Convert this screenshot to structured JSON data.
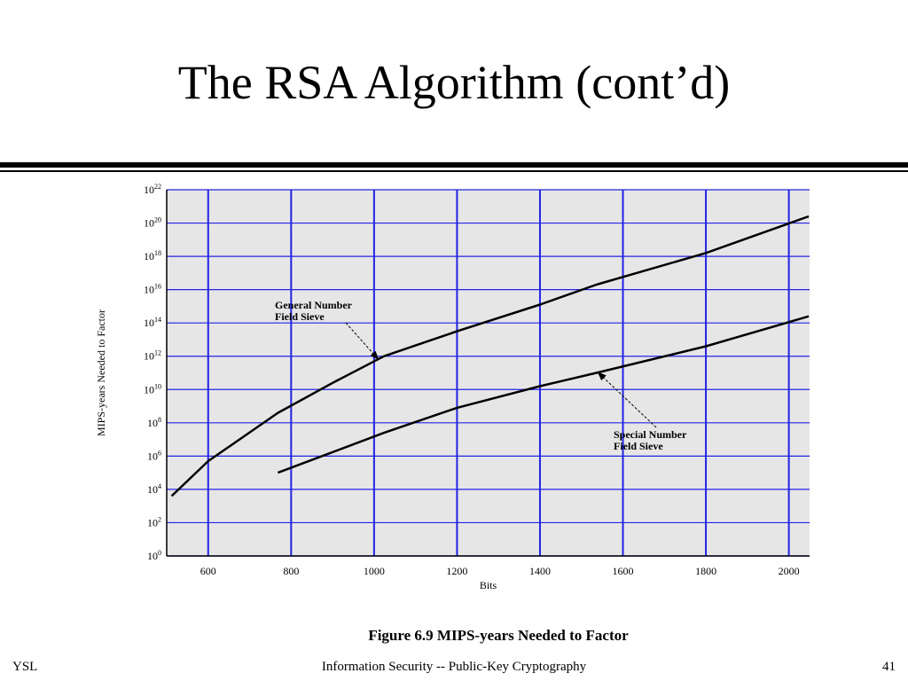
{
  "slide": {
    "title": "The RSA Algorithm (cont’d)",
    "footer_left": "YSL",
    "footer_center": "Information Security -- Public-Key Cryptography",
    "footer_right": "41"
  },
  "chart_data": {
    "type": "line",
    "title": "",
    "caption": "Figure 6.9  MIPS-years Needed to Factor",
    "xlabel": "Bits",
    "ylabel": "MIPS-years Needed to Factor",
    "xlim": [
      500,
      2050
    ],
    "ylim_exponent": [
      0,
      22
    ],
    "yscale": "log",
    "grid": true,
    "plot_background": "#e6e6e6",
    "grid_color": "#2323e6",
    "x_ticks": [
      600,
      800,
      1000,
      1200,
      1400,
      1600,
      1800,
      2000
    ],
    "y_tick_base": "10",
    "y_tick_exponents": [
      "0",
      "2",
      "4",
      "6",
      "8",
      "10",
      "12",
      "14",
      "16",
      "18",
      "20",
      "22"
    ],
    "series": [
      {
        "annotation": "General Number Field Sieve",
        "annotation_lines": [
          "General Number",
          "Field Sieve"
        ],
        "points": [
          {
            "x": 512,
            "y_exp": 3.6
          },
          {
            "x": 600,
            "y_exp": 5.7
          },
          {
            "x": 768,
            "y_exp": 8.6
          },
          {
            "x": 900,
            "y_exp": 10.4
          },
          {
            "x": 1024,
            "y_exp": 12.0
          },
          {
            "x": 1200,
            "y_exp": 13.5
          },
          {
            "x": 1400,
            "y_exp": 15.1
          },
          {
            "x": 1536,
            "y_exp": 16.3
          },
          {
            "x": 1800,
            "y_exp": 18.2
          },
          {
            "x": 2048,
            "y_exp": 20.4
          }
        ]
      },
      {
        "annotation": "Special Number Field Sieve",
        "annotation_lines": [
          "Special Number",
          "Field Sieve"
        ],
        "points": [
          {
            "x": 768,
            "y_exp": 5.0
          },
          {
            "x": 1024,
            "y_exp": 7.4
          },
          {
            "x": 1200,
            "y_exp": 8.9
          },
          {
            "x": 1400,
            "y_exp": 10.2
          },
          {
            "x": 1536,
            "y_exp": 11.0
          },
          {
            "x": 1800,
            "y_exp": 12.6
          },
          {
            "x": 2048,
            "y_exp": 14.4
          }
        ]
      }
    ]
  }
}
